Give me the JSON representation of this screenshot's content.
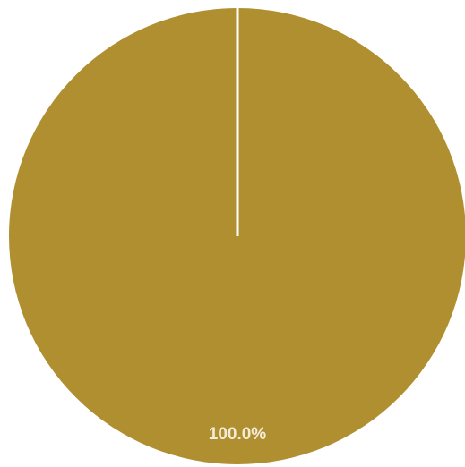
{
  "chart_data": {
    "type": "pie",
    "slices": [
      {
        "value": 100.0,
        "label": "100.0%",
        "color": "#b08f31"
      }
    ],
    "start_angle_deg": 0,
    "direction": "clockwise",
    "legend": "none",
    "slice_separator_color": "#ffffff",
    "label_color": "#f3ecd6"
  }
}
